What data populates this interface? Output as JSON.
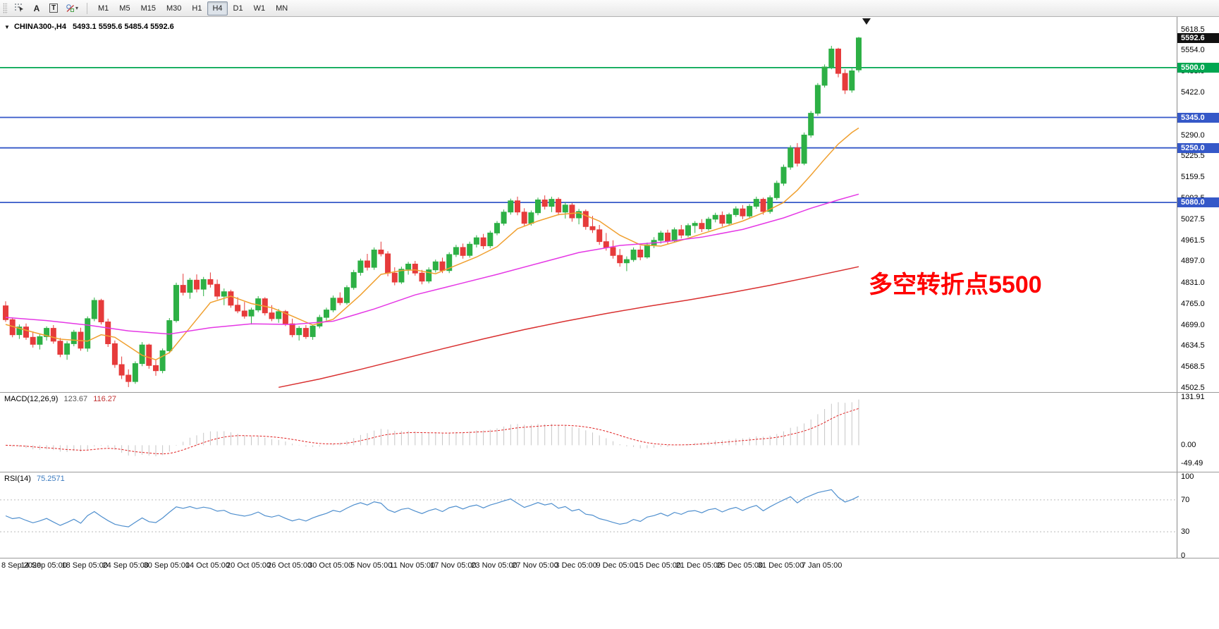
{
  "toolbar": {
    "tools": {
      "a_label": "A",
      "t_label": "T",
      "caret": "▾"
    },
    "timeframes": [
      "M1",
      "M5",
      "M15",
      "M30",
      "H1",
      "H4",
      "D1",
      "W1",
      "MN"
    ],
    "active_timeframe": "H4"
  },
  "chart": {
    "dropdown_glyph": "▼",
    "symbol_period": "CHINA300-,H4",
    "ohlc_text": "5493.1 5595.6 5485.4 5592.6",
    "annotation": {
      "text": "多空转折点5500",
      "color": "#ff0000"
    },
    "levels": [
      {
        "value": 5500.0,
        "color": "#00a651"
      },
      {
        "value": 5345.0,
        "color": "#3558c8"
      },
      {
        "value": 5250.0,
        "color": "#3558c8"
      },
      {
        "value": 5080.0,
        "color": "#3558c8"
      }
    ],
    "price_scale": {
      "ticks": [
        "5618.5",
        "5554.0",
        "5488.0",
        "5422.0",
        "5290.0",
        "5225.5",
        "5159.5",
        "5093.5",
        "5027.5",
        "4961.5",
        "4897.0",
        "4831.0",
        "4765.0",
        "4699.0",
        "4634.5",
        "4568.5",
        "4502.5"
      ],
      "markers": [
        {
          "label": "5592.6",
          "value": 5592.6,
          "bg": "#111111"
        },
        {
          "label": "5500.0",
          "value": 5500.0,
          "bg": "#00a651"
        },
        {
          "label": "5345.0",
          "value": 5345.0,
          "bg": "#3558c8"
        },
        {
          "label": "5250.0",
          "value": 5250.0,
          "bg": "#3558c8"
        },
        {
          "label": "5080.0",
          "value": 5080.0,
          "bg": "#3558c8"
        }
      ]
    },
    "macd": {
      "label": "MACD(12,26,9)",
      "value_main": "123.67",
      "value_signal": "116.27",
      "scale": [
        "131.91",
        "0.00",
        "-49.49"
      ]
    },
    "rsi": {
      "label": "RSI(14)",
      "value": "75.2571",
      "scale": [
        "100",
        "70",
        "30",
        "0"
      ],
      "levels": [
        70,
        30
      ]
    }
  },
  "chart_data": {
    "type": "candlestick",
    "title": "CHINA300-,H4",
    "current_ohlc": {
      "open": 5493.1,
      "high": 5595.6,
      "low": 5485.4,
      "close": 5592.6
    },
    "y_range": [
      4502.5,
      5618.5
    ],
    "x_labels": [
      "8 Sep 2020",
      "14 Sep 05:00",
      "18 Sep 05:00",
      "24 Sep 05:00",
      "30 Sep 05:00",
      "14 Oct 05:00",
      "20 Oct 05:00",
      "26 Oct 05:00",
      "30 Oct 05:00",
      "5 Nov 05:00",
      "11 Nov 05:00",
      "17 Nov 05:00",
      "23 Nov 05:00",
      "27 Nov 05:00",
      "3 Dec 05:00",
      "9 Dec 05:00",
      "15 Dec 05:00",
      "21 Dec 05:00",
      "25 Dec 05:00",
      "31 Dec 05:00",
      "7 Jan 05:00"
    ],
    "colors": {
      "up": "#2db045",
      "down": "#e63b3b",
      "ma_fast": "#f0a030",
      "ma_mid": "#e538e5",
      "ma_slow": "#d93030",
      "macd_hist": "#c6c6c6",
      "macd_signal": "#e02020",
      "rsi": "#4f8fce"
    },
    "candles": [
      [
        4758,
        4772,
        4708,
        4715
      ],
      [
        4715,
        4722,
        4660,
        4668
      ],
      [
        4668,
        4700,
        4655,
        4692
      ],
      [
        4692,
        4703,
        4652,
        4660
      ],
      [
        4660,
        4678,
        4628,
        4638
      ],
      [
        4638,
        4670,
        4622,
        4662
      ],
      [
        4662,
        4694,
        4650,
        4688
      ],
      [
        4688,
        4698,
        4640,
        4648
      ],
      [
        4648,
        4658,
        4598,
        4607
      ],
      [
        4607,
        4648,
        4590,
        4640
      ],
      [
        4640,
        4683,
        4632,
        4676
      ],
      [
        4676,
        4690,
        4618,
        4626
      ],
      [
        4626,
        4725,
        4615,
        4718
      ],
      [
        4718,
        4784,
        4710,
        4775
      ],
      [
        4775,
        4780,
        4700,
        4708
      ],
      [
        4708,
        4718,
        4630,
        4640
      ],
      [
        4640,
        4650,
        4565,
        4575
      ],
      [
        4575,
        4600,
        4530,
        4542
      ],
      [
        4542,
        4560,
        4505,
        4522
      ],
      [
        4522,
        4585,
        4515,
        4578
      ],
      [
        4578,
        4645,
        4570,
        4636
      ],
      [
        4636,
        4640,
        4562,
        4572
      ],
      [
        4572,
        4590,
        4540,
        4556
      ],
      [
        4556,
        4625,
        4548,
        4618
      ],
      [
        4618,
        4720,
        4610,
        4712
      ],
      [
        4712,
        4830,
        4706,
        4822
      ],
      [
        4822,
        4858,
        4790,
        4800
      ],
      [
        4800,
        4845,
        4780,
        4838
      ],
      [
        4838,
        4856,
        4800,
        4810
      ],
      [
        4810,
        4848,
        4788,
        4840
      ],
      [
        4840,
        4862,
        4815,
        4825
      ],
      [
        4825,
        4840,
        4778,
        4788
      ],
      [
        4788,
        4812,
        4760,
        4802
      ],
      [
        4802,
        4808,
        4752,
        4760
      ],
      [
        4760,
        4785,
        4735,
        4742
      ],
      [
        4742,
        4770,
        4718,
        4726
      ],
      [
        4726,
        4752,
        4700,
        4745
      ],
      [
        4745,
        4788,
        4738,
        4780
      ],
      [
        4780,
        4785,
        4728,
        4736
      ],
      [
        4736,
        4760,
        4710,
        4718
      ],
      [
        4718,
        4748,
        4705,
        4740
      ],
      [
        4740,
        4745,
        4695,
        4702
      ],
      [
        4702,
        4718,
        4660,
        4668
      ],
      [
        4668,
        4695,
        4650,
        4688
      ],
      [
        4688,
        4698,
        4655,
        4662
      ],
      [
        4662,
        4700,
        4652,
        4695
      ],
      [
        4695,
        4730,
        4688,
        4722
      ],
      [
        4722,
        4752,
        4712,
        4745
      ],
      [
        4745,
        4790,
        4738,
        4782
      ],
      [
        4782,
        4800,
        4760,
        4768
      ],
      [
        4768,
        4822,
        4762,
        4815
      ],
      [
        4815,
        4870,
        4808,
        4862
      ],
      [
        4862,
        4905,
        4852,
        4898
      ],
      [
        4898,
        4920,
        4868,
        4878
      ],
      [
        4878,
        4940,
        4870,
        4932
      ],
      [
        4932,
        4958,
        4912,
        4920
      ],
      [
        4920,
        4928,
        4850,
        4860
      ],
      [
        4860,
        4878,
        4822,
        4832
      ],
      [
        4832,
        4880,
        4826,
        4872
      ],
      [
        4872,
        4895,
        4855,
        4888
      ],
      [
        4888,
        4898,
        4852,
        4860
      ],
      [
        4860,
        4870,
        4825,
        4835
      ],
      [
        4835,
        4878,
        4828,
        4870
      ],
      [
        4870,
        4902,
        4862,
        4895
      ],
      [
        4895,
        4908,
        4860,
        4868
      ],
      [
        4868,
        4925,
        4860,
        4918
      ],
      [
        4918,
        4948,
        4910,
        4940
      ],
      [
        4940,
        4952,
        4905,
        4915
      ],
      [
        4915,
        4958,
        4908,
        4950
      ],
      [
        4950,
        4978,
        4940,
        4970
      ],
      [
        4970,
        4982,
        4935,
        4945
      ],
      [
        4945,
        4992,
        4938,
        4985
      ],
      [
        4985,
        5022,
        4978,
        5015
      ],
      [
        5015,
        5058,
        5008,
        5050
      ],
      [
        5050,
        5092,
        5042,
        5085
      ],
      [
        5085,
        5098,
        5040,
        5050
      ],
      [
        5050,
        5062,
        5005,
        5015
      ],
      [
        5015,
        5055,
        5008,
        5048
      ],
      [
        5048,
        5095,
        5040,
        5088
      ],
      [
        5088,
        5102,
        5058,
        5068
      ],
      [
        5068,
        5098,
        5050,
        5090
      ],
      [
        5090,
        5096,
        5040,
        5050
      ],
      [
        5050,
        5080,
        5030,
        5072
      ],
      [
        5072,
        5078,
        5020,
        5032
      ],
      [
        5032,
        5060,
        5012,
        5052
      ],
      [
        5052,
        5058,
        4995,
        5005
      ],
      [
        5005,
        5038,
        4985,
        4995
      ],
      [
        4995,
        5010,
        4948,
        4958
      ],
      [
        4958,
        4985,
        4930,
        4940
      ],
      [
        4940,
        4962,
        4905,
        4915
      ],
      [
        4915,
        4935,
        4880,
        4892
      ],
      [
        4892,
        4912,
        4866,
        4902
      ],
      [
        4902,
        4940,
        4895,
        4932
      ],
      [
        4932,
        4945,
        4900,
        4910
      ],
      [
        4910,
        4955,
        4905,
        4948
      ],
      [
        4948,
        4972,
        4938,
        4962
      ],
      [
        4962,
        4992,
        4952,
        4985
      ],
      [
        4985,
        4995,
        4950,
        4960
      ],
      [
        4960,
        5002,
        4955,
        4995
      ],
      [
        4995,
        5010,
        4968,
        4978
      ],
      [
        4978,
        5015,
        4972,
        5008
      ],
      [
        5008,
        5022,
        4985,
        5015
      ],
      [
        5015,
        5028,
        4988,
        4998
      ],
      [
        4998,
        5035,
        4992,
        5028
      ],
      [
        5028,
        5048,
        5018,
        5040
      ],
      [
        5040,
        5052,
        5005,
        5015
      ],
      [
        5015,
        5048,
        5008,
        5042
      ],
      [
        5042,
        5068,
        5035,
        5060
      ],
      [
        5060,
        5072,
        5028,
        5038
      ],
      [
        5038,
        5075,
        5030,
        5068
      ],
      [
        5068,
        5098,
        5060,
        5090
      ],
      [
        5090,
        5095,
        5042,
        5052
      ],
      [
        5052,
        5102,
        5045,
        5095
      ],
      [
        5095,
        5148,
        5088,
        5140
      ],
      [
        5140,
        5198,
        5132,
        5190
      ],
      [
        5190,
        5258,
        5182,
        5250
      ],
      [
        5250,
        5265,
        5192,
        5202
      ],
      [
        5202,
        5298,
        5196,
        5290
      ],
      [
        5290,
        5365,
        5282,
        5358
      ],
      [
        5358,
        5452,
        5350,
        5445
      ],
      [
        5445,
        5510,
        5438,
        5502
      ],
      [
        5502,
        5568,
        5495,
        5558
      ],
      [
        5558,
        5562,
        5470,
        5482
      ],
      [
        5482,
        5495,
        5418,
        5430
      ],
      [
        5430,
        5500,
        5422,
        5490
      ],
      [
        5493.1,
        5595.6,
        5485.4,
        5592.6
      ]
    ],
    "moving_averages": [
      {
        "name": "ma-fast",
        "color": "#f0a030",
        "points": [
          [
            0,
            4700
          ],
          [
            4,
            4676
          ],
          [
            8,
            4654
          ],
          [
            12,
            4648
          ],
          [
            14,
            4668
          ],
          [
            16,
            4660
          ],
          [
            20,
            4604
          ],
          [
            22,
            4590
          ],
          [
            24,
            4612
          ],
          [
            27,
            4690
          ],
          [
            30,
            4768
          ],
          [
            33,
            4788
          ],
          [
            36,
            4765
          ],
          [
            39,
            4752
          ],
          [
            42,
            4726
          ],
          [
            45,
            4698
          ],
          [
            48,
            4716
          ],
          [
            52,
            4792
          ],
          [
            55,
            4856
          ],
          [
            58,
            4868
          ],
          [
            60,
            4870
          ],
          [
            63,
            4858
          ],
          [
            66,
            4884
          ],
          [
            69,
            4910
          ],
          [
            72,
            4942
          ],
          [
            75,
            4998
          ],
          [
            78,
            5022
          ],
          [
            81,
            5042
          ],
          [
            84,
            5048
          ],
          [
            87,
            5022
          ],
          [
            90,
            4978
          ],
          [
            93,
            4948
          ],
          [
            96,
            4944
          ],
          [
            99,
            4962
          ],
          [
            102,
            4982
          ],
          [
            105,
            5002
          ],
          [
            108,
            5022
          ],
          [
            111,
            5048
          ],
          [
            114,
            5080
          ],
          [
            116,
            5118
          ],
          [
            118,
            5165
          ],
          [
            120,
            5215
          ],
          [
            122,
            5262
          ],
          [
            124,
            5298
          ],
          [
            125,
            5312
          ]
        ]
      },
      {
        "name": "ma-mid",
        "color": "#e538e5",
        "points": [
          [
            0,
            4722
          ],
          [
            6,
            4712
          ],
          [
            12,
            4698
          ],
          [
            18,
            4680
          ],
          [
            24,
            4670
          ],
          [
            30,
            4690
          ],
          [
            36,
            4702
          ],
          [
            42,
            4700
          ],
          [
            48,
            4710
          ],
          [
            54,
            4748
          ],
          [
            60,
            4792
          ],
          [
            66,
            4824
          ],
          [
            72,
            4856
          ],
          [
            78,
            4890
          ],
          [
            84,
            4924
          ],
          [
            90,
            4946
          ],
          [
            96,
            4956
          ],
          [
            102,
            4972
          ],
          [
            108,
            4996
          ],
          [
            114,
            5032
          ],
          [
            118,
            5062
          ],
          [
            122,
            5088
          ],
          [
            125,
            5106
          ]
        ]
      },
      {
        "name": "ma-slow",
        "color": "#d93030",
        "points": [
          [
            40,
            4504
          ],
          [
            46,
            4530
          ],
          [
            52,
            4560
          ],
          [
            58,
            4592
          ],
          [
            64,
            4624
          ],
          [
            70,
            4655
          ],
          [
            76,
            4684
          ],
          [
            82,
            4710
          ],
          [
            88,
            4734
          ],
          [
            94,
            4756
          ],
          [
            100,
            4776
          ],
          [
            106,
            4798
          ],
          [
            112,
            4822
          ],
          [
            118,
            4848
          ],
          [
            125,
            4880
          ]
        ]
      }
    ],
    "indicators": {
      "macd": {
        "fast": 12,
        "slow": 26,
        "signal": 9,
        "last_main": 123.67,
        "last_signal": 116.27
      },
      "rsi": {
        "period": 14,
        "last": 75.2571
      }
    }
  }
}
